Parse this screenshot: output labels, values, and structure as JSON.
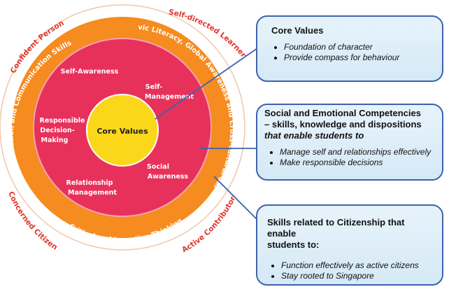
{
  "diagram": {
    "core_label": "Core Values",
    "outer_ring_labels": {
      "confident": "Confident Person",
      "self_directed": "Self-directed Learner",
      "concerned": "Concerned Citizen",
      "active": "Active Contributor"
    },
    "orange_ring_labels": {
      "info_comm": "Information and Communication Skills",
      "civic": "Civic Literacy, Global Awareness and Cross-cultural Skills",
      "critical": "Critical and Inventive Thinking"
    },
    "competencies": {
      "self_awareness": "Self-Awareness",
      "self_management_1": "Self-",
      "self_management_2": "Management",
      "responsible_1": "Responsible",
      "responsible_2": "Decision-",
      "responsible_3": "Making",
      "social_1": "Social",
      "social_2": "Awareness",
      "relationship_1": "Relationship",
      "relationship_2": "Management"
    }
  },
  "callouts": {
    "core_values": {
      "title": "Core Values",
      "items": [
        "Foundation of character",
        "Provide compass for behaviour"
      ]
    },
    "sec": {
      "title_line1": "Social and Emotional Competencies",
      "title_line2": "– skills, knowledge and dispositions",
      "title_line3": "that enable students to",
      "items": [
        "Manage self and relationships effectively",
        "Make responsible decisions"
      ]
    },
    "citizenship": {
      "title_line1": "Skills related to Citizenship that enable",
      "title_line2": "students to:",
      "items": [
        "Function effectively as active citizens",
        "Stay rooted to Singapore"
      ]
    }
  },
  "colors": {
    "outer_ring": "#ffffff",
    "orange_ring": "#f68b1f",
    "pink": "#e8315a",
    "core": "#fbd71b",
    "red_text": "#e0352b",
    "box_border": "#3e62ae"
  }
}
